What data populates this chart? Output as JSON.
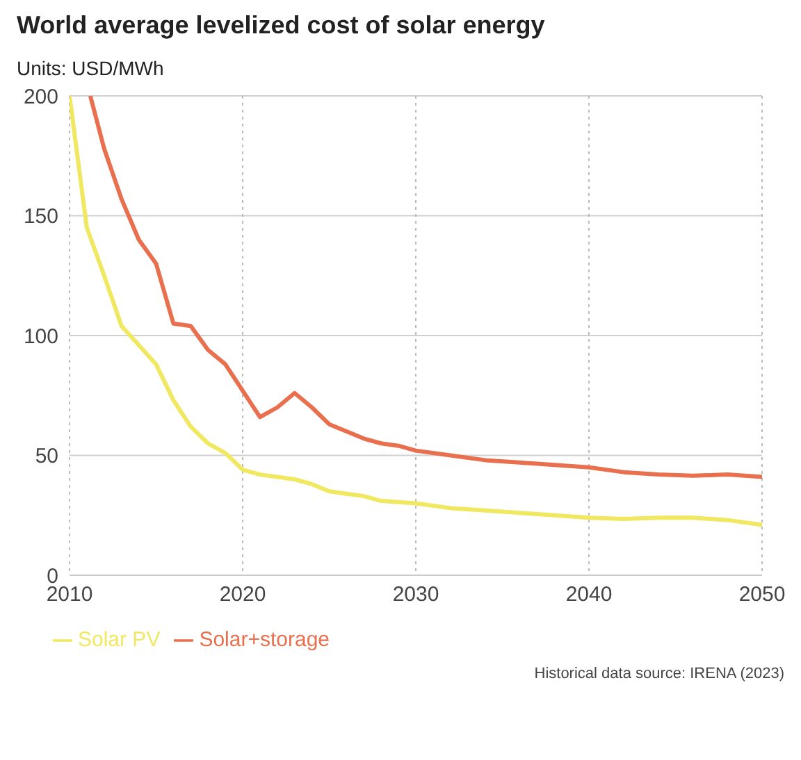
{
  "chart_data": {
    "type": "line",
    "title": "World average levelized cost of solar energy",
    "ylabel": "Units: USD/MWh",
    "series": [
      {
        "name": "Solar+storage",
        "color": "#e8704e",
        "x": [
          2011.2,
          2012,
          2013,
          2014,
          2015,
          2016,
          2017,
          2018,
          2019,
          2020,
          2021,
          2022,
          2023,
          2024,
          2025,
          2026,
          2027,
          2028,
          2029,
          2030,
          2032,
          2034,
          2036,
          2038,
          2040,
          2042,
          2044,
          2046,
          2048,
          2050
        ],
        "values": [
          200,
          178,
          157,
          140,
          130,
          105,
          104,
          94,
          88,
          77,
          66,
          70,
          76,
          70,
          63,
          60,
          57,
          55,
          54,
          52,
          50,
          48,
          47,
          46,
          45,
          43,
          42,
          41.5,
          42,
          41
        ]
      },
      {
        "name": "Solar PV",
        "color": "#f0e860",
        "x": [
          2010,
          2011,
          2012,
          2013,
          2014,
          2015,
          2016,
          2017,
          2018,
          2019,
          2020,
          2021,
          2022,
          2023,
          2024,
          2025,
          2026,
          2027,
          2028,
          2030,
          2032,
          2034,
          2036,
          2038,
          2040,
          2042,
          2044,
          2046,
          2048,
          2050
        ],
        "values": [
          200,
          145,
          125,
          104,
          96,
          88,
          73,
          62,
          55,
          51,
          44,
          42,
          41,
          40,
          38,
          35,
          34,
          33,
          31,
          30,
          28,
          27,
          26,
          25,
          24,
          23.5,
          24,
          24,
          23,
          21
        ]
      }
    ],
    "xlim": [
      2010,
      2050
    ],
    "xticks": [
      2010,
      2020,
      2030,
      2040,
      2050
    ],
    "ylim": [
      0,
      200
    ],
    "yticks": [
      0,
      50,
      100,
      150,
      200
    ],
    "grid": true,
    "legend": "bottom",
    "marker": "none",
    "line_style": "solid",
    "annotations": [
      "Historical data source: IRENA (2023)"
    ]
  }
}
